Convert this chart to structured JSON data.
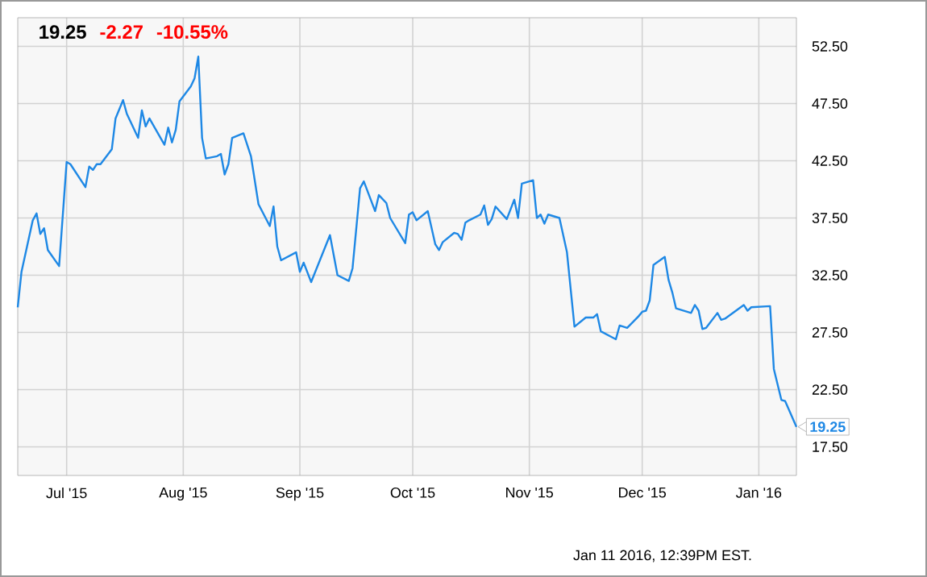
{
  "chart_data": {
    "type": "line",
    "color": "#1e88e5",
    "x": [
      "2015-06-18",
      "2015-06-19",
      "2015-06-22",
      "2015-06-23",
      "2015-06-24",
      "2015-06-25",
      "2015-06-26",
      "2015-06-29",
      "2015-07-01",
      "2015-07-02",
      "2015-07-06",
      "2015-07-07",
      "2015-07-08",
      "2015-07-09",
      "2015-07-10",
      "2015-07-13",
      "2015-07-14",
      "2015-07-16",
      "2015-07-17",
      "2015-07-20",
      "2015-07-21",
      "2015-07-22",
      "2015-07-23",
      "2015-07-27",
      "2015-07-28",
      "2015-07-29",
      "2015-07-30",
      "2015-07-31",
      "2015-08-03",
      "2015-08-04",
      "2015-08-05",
      "2015-08-06",
      "2015-08-07",
      "2015-08-10",
      "2015-08-11",
      "2015-08-12",
      "2015-08-13",
      "2015-08-14",
      "2015-08-17",
      "2015-08-19",
      "2015-08-21",
      "2015-08-24",
      "2015-08-25",
      "2015-08-26",
      "2015-08-27",
      "2015-08-31",
      "2015-09-01",
      "2015-09-02",
      "2015-09-04",
      "2015-09-09",
      "2015-09-11",
      "2015-09-14",
      "2015-09-15",
      "2015-09-17",
      "2015-09-18",
      "2015-09-21",
      "2015-09-22",
      "2015-09-24",
      "2015-09-25",
      "2015-09-29",
      "2015-09-30",
      "2015-10-01",
      "2015-10-02",
      "2015-10-05",
      "2015-10-07",
      "2015-10-08",
      "2015-10-09",
      "2015-10-12",
      "2015-10-13",
      "2015-10-14",
      "2015-10-15",
      "2015-10-16",
      "2015-10-19",
      "2015-10-20",
      "2015-10-21",
      "2015-10-22",
      "2015-10-23",
      "2015-10-26",
      "2015-10-28",
      "2015-10-29",
      "2015-10-30",
      "2015-11-02",
      "2015-11-03",
      "2015-11-04",
      "2015-11-05",
      "2015-11-06",
      "2015-11-09",
      "2015-11-11",
      "2015-11-13",
      "2015-11-16",
      "2015-11-18",
      "2015-11-19",
      "2015-11-20",
      "2015-11-24",
      "2015-11-25",
      "2015-11-27",
      "2015-11-30",
      "2015-12-01",
      "2015-12-02",
      "2015-12-03",
      "2015-12-04",
      "2015-12-07",
      "2015-12-08",
      "2015-12-09",
      "2015-12-10",
      "2015-12-14",
      "2015-12-15",
      "2015-12-16",
      "2015-12-17",
      "2015-12-18",
      "2015-12-21",
      "2015-12-22",
      "2015-12-23",
      "2015-12-28",
      "2015-12-29",
      "2015-12-30",
      "2016-01-04",
      "2016-01-05",
      "2016-01-07",
      "2016-01-08",
      "2016-01-11"
    ],
    "values": [
      29.7,
      32.8,
      37.3,
      37.9,
      36.1,
      36.6,
      34.7,
      33.3,
      42.4,
      42.2,
      40.2,
      42.0,
      41.7,
      42.2,
      42.2,
      43.5,
      46.2,
      47.8,
      46.6,
      44.5,
      46.9,
      45.5,
      46.2,
      43.9,
      45.4,
      44.1,
      45.2,
      47.7,
      49.0,
      49.7,
      51.6,
      44.5,
      42.7,
      42.9,
      43.1,
      41.3,
      42.2,
      44.5,
      44.9,
      42.9,
      38.7,
      36.8,
      38.5,
      35.0,
      33.8,
      34.5,
      32.8,
      33.6,
      31.9,
      36.0,
      32.5,
      32.0,
      33.1,
      40.1,
      40.7,
      38.1,
      39.5,
      38.8,
      37.5,
      35.3,
      37.8,
      38.0,
      37.3,
      38.1,
      35.2,
      34.7,
      35.4,
      36.2,
      36.1,
      35.6,
      37.1,
      37.3,
      37.8,
      38.6,
      36.9,
      37.4,
      38.5,
      37.4,
      39.1,
      37.5,
      40.5,
      40.8,
      37.5,
      37.8,
      37.0,
      37.8,
      37.5,
      34.5,
      28.0,
      28.8,
      28.8,
      29.1,
      27.6,
      26.9,
      28.1,
      27.9,
      28.9,
      29.3,
      29.4,
      30.3,
      33.4,
      34.1,
      32.1,
      31.0,
      29.6,
      29.2,
      29.9,
      29.4,
      27.8,
      27.9,
      29.2,
      28.6,
      28.7,
      29.9,
      29.4,
      29.7,
      29.8,
      24.3,
      21.6,
      21.5,
      19.25
    ],
    "xlim": [
      "2015-06-18",
      "2016-01-11"
    ],
    "xticks": [
      {
        "value": "2015-07-01",
        "label": "Jul '15"
      },
      {
        "value": "2015-08-01",
        "label": "Aug '15"
      },
      {
        "value": "2015-09-01",
        "label": "Sep '15"
      },
      {
        "value": "2015-10-01",
        "label": "Oct '15"
      },
      {
        "value": "2015-11-01",
        "label": "Nov '15"
      },
      {
        "value": "2015-12-01",
        "label": "Dec '15"
      },
      {
        "value": "2016-01-01",
        "label": "Jan '16"
      }
    ],
    "ylim": [
      15,
      55
    ],
    "yticks": [
      {
        "value": 17.5,
        "label": "17.50"
      },
      {
        "value": 22.5,
        "label": "22.50"
      },
      {
        "value": 27.5,
        "label": "27.50"
      },
      {
        "value": 32.5,
        "label": "32.50"
      },
      {
        "value": 37.5,
        "label": "37.50"
      },
      {
        "value": 42.5,
        "label": "42.50"
      },
      {
        "value": 47.5,
        "label": "47.50"
      },
      {
        "value": 52.5,
        "label": "52.50"
      }
    ],
    "grid": true,
    "marker": "none",
    "line_style": "solid",
    "annotations": [
      "19.25",
      "-2.27",
      "-10.55%",
      "Jan 11 2016, 12:39PM EST.",
      "19.25"
    ]
  }
}
